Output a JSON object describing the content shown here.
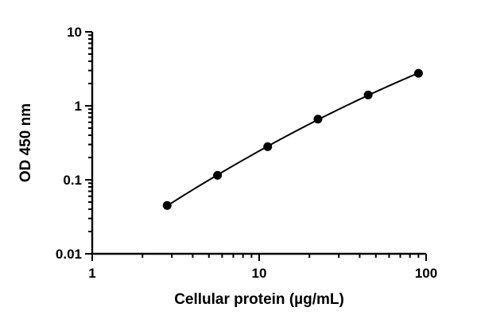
{
  "chart_data": {
    "type": "scatter",
    "x": [
      2.81,
      5.63,
      11.25,
      22.5,
      45,
      90
    ],
    "y": [
      0.045,
      0.115,
      0.28,
      0.66,
      1.4,
      2.75
    ],
    "xlabel": "Cellular protein (µg/mL)",
    "ylabel": "OD 450 nm",
    "xscale": "log",
    "yscale": "log",
    "xlim": [
      1,
      100
    ],
    "ylim": [
      0.01,
      10
    ],
    "xticks": [
      {
        "value": 1,
        "label": "1"
      },
      {
        "value": 10,
        "label": "10"
      },
      {
        "value": 100,
        "label": "100"
      }
    ],
    "yticks": [
      {
        "value": 0.01,
        "label": "0.01"
      },
      {
        "value": 0.1,
        "label": "0.1"
      },
      {
        "value": 1,
        "label": "1"
      },
      {
        "value": 10,
        "label": "10"
      }
    ],
    "fit_line": true,
    "grid": false,
    "marker_color": "#000000",
    "line_color": "#000000"
  }
}
